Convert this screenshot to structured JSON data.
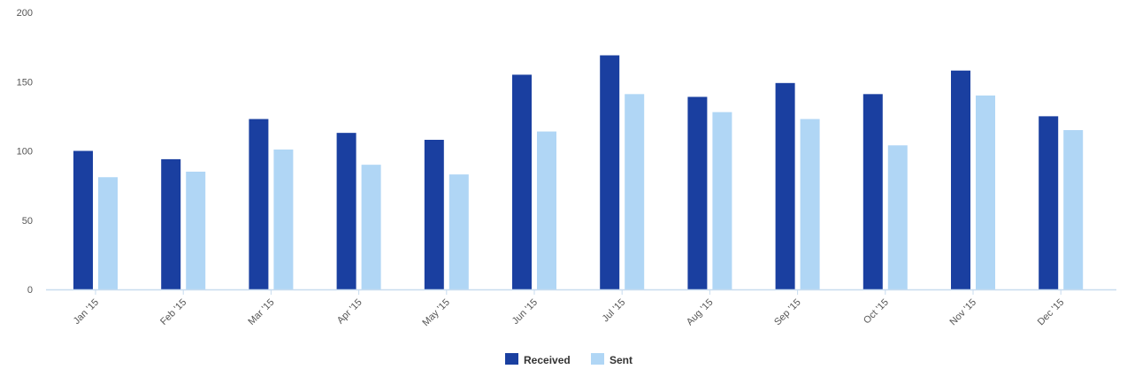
{
  "chart_data": {
    "type": "bar",
    "title": "",
    "xlabel": "",
    "ylabel": "",
    "ylim": [
      0,
      200
    ],
    "yticks": [
      0,
      50,
      100,
      150,
      200
    ],
    "grid": false,
    "legend_position": "bottom-center",
    "categories": [
      "Jan '15",
      "Feb '15",
      "Mar '15",
      "Apr '15",
      "May '15",
      "Jun '15",
      "Jul '15",
      "Aug '15",
      "Sep '15",
      "Oct '15",
      "Nov '15",
      "Dec '15"
    ],
    "series": [
      {
        "name": "Received",
        "color": "#1a3fa0",
        "values": [
          100,
          94,
          123,
          113,
          108,
          155,
          169,
          139,
          149,
          141,
          158,
          125
        ]
      },
      {
        "name": "Sent",
        "color": "#b0d6f5",
        "values": [
          81,
          85,
          101,
          90,
          83,
          114,
          141,
          128,
          123,
          104,
          140,
          115
        ]
      }
    ],
    "axis_color": "#c8dcef"
  }
}
